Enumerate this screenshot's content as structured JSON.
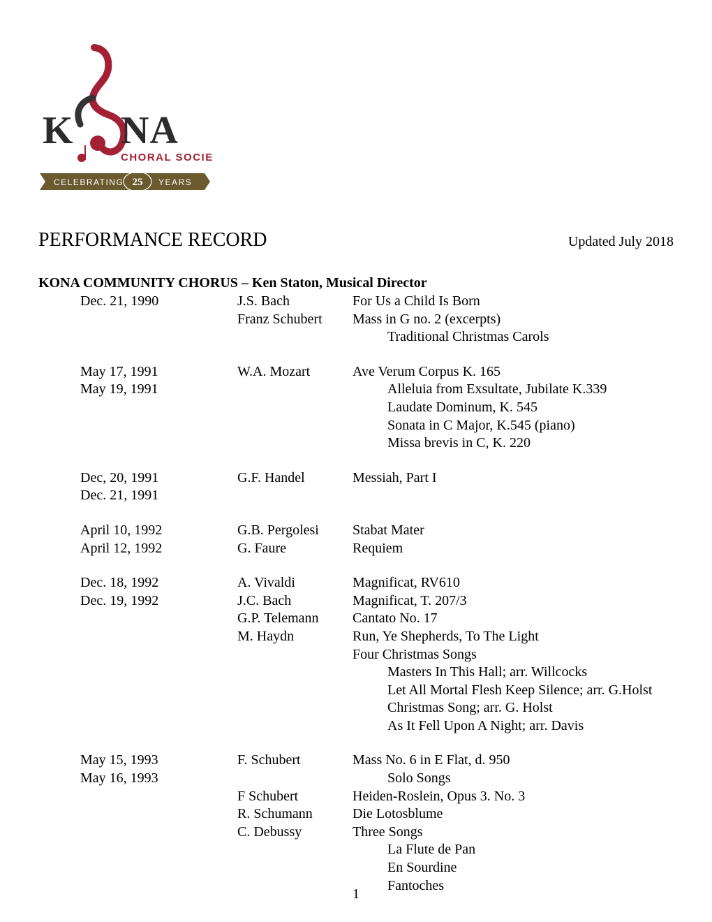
{
  "logo": {
    "text_main": "K   NA",
    "text_sub": "CHORAL SOCIETY",
    "banner_left": "CELEBRATING",
    "banner_num": "25",
    "banner_right": "YEARS",
    "colors": {
      "main_text": "#2b2b2b",
      "accent": "#a32035",
      "banner": "#6b5a2e",
      "banner_text": "#ffffff"
    }
  },
  "title": "PERFORMANCE RECORD",
  "updated": "Updated July 2018",
  "subtitle": "KONA COMMUNITY CHORUS – Ken Staton, Musical Director",
  "page_number": "1",
  "entries": [
    {
      "dates": [
        "Dec. 21, 1990"
      ],
      "composers": [
        "J.S. Bach",
        "Franz Schubert"
      ],
      "works": [
        {
          "text": "For Us a Child Is Born"
        },
        {
          "text": "Mass in G no. 2 (excerpts)"
        },
        {
          "text": "Traditional Christmas Carols",
          "indent": true
        }
      ]
    },
    {
      "dates": [
        "May 17, 1991",
        "May 19, 1991"
      ],
      "composers": [
        "W.A. Mozart"
      ],
      "works": [
        {
          "text": "Ave Verum Corpus K. 165"
        },
        {
          "text": "Alleluia from Exsultate, Jubilate K.339",
          "indent": true
        },
        {
          "text": "Laudate Dominum, K. 545",
          "indent": true
        },
        {
          "text": "Sonata in C Major, K.545 (piano)",
          "indent": true
        },
        {
          "text": "Missa brevis in C, K. 220",
          "indent": true
        }
      ]
    },
    {
      "dates": [
        "Dec, 20, 1991",
        "Dec. 21, 1991"
      ],
      "composers": [
        "G.F. Handel"
      ],
      "works": [
        {
          "text": "Messiah, Part I"
        }
      ]
    },
    {
      "dates": [
        "April 10, 1992",
        "April 12, 1992"
      ],
      "composers": [
        "G.B. Pergolesi",
        "G. Faure"
      ],
      "works": [
        {
          "text": "Stabat Mater"
        },
        {
          "text": "Requiem"
        }
      ]
    },
    {
      "dates": [
        "Dec. 18, 1992",
        "Dec. 19, 1992"
      ],
      "composers": [
        "A. Vivaldi",
        "J.C. Bach",
        "G.P. Telemann",
        "M. Haydn"
      ],
      "works": [
        {
          "text": "Magnificat, RV610"
        },
        {
          "text": "Magnificat, T. 207/3"
        },
        {
          "text": "Cantato No. 17"
        },
        {
          "text": "Run, Ye Shepherds, To The Light"
        },
        {
          "text": "Four Christmas Songs"
        },
        {
          "text": "Masters In This Hall; arr. Willcocks",
          "indent": true
        },
        {
          "text": "Let All Mortal Flesh Keep Silence; arr. G.Holst",
          "indent": true
        },
        {
          "text": "Christmas Song; arr. G. Holst",
          "indent": true
        },
        {
          "text": "As It Fell Upon A Night; arr. Davis",
          "indent": true
        }
      ]
    },
    {
      "dates": [
        "May 15, 1993",
        "May 16, 1993"
      ],
      "composers": [
        "F. Schubert",
        "",
        "F Schubert",
        "R. Schumann",
        "C. Debussy"
      ],
      "works": [
        {
          "text": "Mass No. 6 in E Flat, d. 950"
        },
        {
          "text": "Solo Songs",
          "indent": true
        },
        {
          "text": "Heiden-Roslein, Opus 3. No. 3"
        },
        {
          "text": "Die Lotosblume"
        },
        {
          "text": "Three Songs"
        },
        {
          "text": "La Flute de Pan",
          "indent": true
        },
        {
          "text": "En Sourdine",
          "indent": true
        },
        {
          "text": "Fantoches",
          "indent": true
        }
      ]
    }
  ]
}
